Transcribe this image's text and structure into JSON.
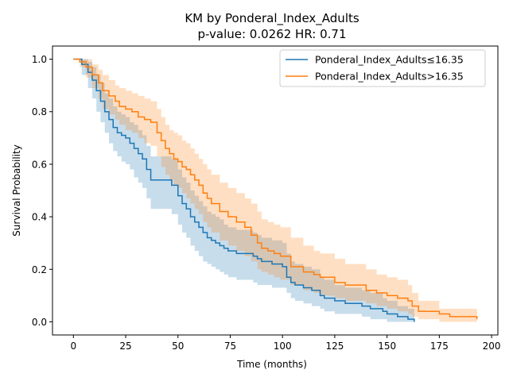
{
  "chart_data": {
    "type": "line",
    "title": "KM by Ponderal_Index_Adults",
    "subtitle": "p-value: 0.0262  HR: 0.71",
    "xlabel": "Time (months)",
    "ylabel": "Survival Probability",
    "xlim": [
      -10,
      203
    ],
    "ylim": [
      -0.05,
      1.05
    ],
    "xticks": [
      0,
      25,
      50,
      75,
      100,
      125,
      150,
      175,
      200
    ],
    "yticks": [
      0.0,
      0.2,
      0.4,
      0.6,
      0.8,
      1.0
    ],
    "xtick_labels": [
      "0",
      "25",
      "50",
      "75",
      "100",
      "125",
      "150",
      "175",
      "200"
    ],
    "ytick_labels": [
      "0.0",
      "0.2",
      "0.4",
      "0.6",
      "0.8",
      "1.0"
    ],
    "grid": false,
    "legend_position": "top-right",
    "step": true,
    "series": [
      {
        "name": "Ponderal_Index_Adults≤16.35",
        "color": "#1f77b4",
        "band_color": "#1f77b4",
        "x": [
          0,
          4,
          7,
          9,
          11,
          13,
          15,
          17,
          19,
          21,
          23,
          25,
          27,
          29,
          31,
          33,
          35,
          37,
          47,
          50,
          52,
          54,
          56,
          58,
          60,
          62,
          64,
          66,
          68,
          70,
          72,
          74,
          76,
          78,
          86,
          88,
          90,
          95,
          100,
          102,
          104,
          106,
          110,
          114,
          118,
          120,
          125,
          130,
          135,
          138,
          142,
          148,
          150,
          155,
          160,
          163
        ],
        "y": [
          1.0,
          0.98,
          0.95,
          0.92,
          0.88,
          0.84,
          0.8,
          0.77,
          0.74,
          0.72,
          0.71,
          0.7,
          0.68,
          0.66,
          0.64,
          0.62,
          0.58,
          0.54,
          0.52,
          0.48,
          0.45,
          0.43,
          0.4,
          0.38,
          0.36,
          0.34,
          0.32,
          0.31,
          0.3,
          0.29,
          0.28,
          0.27,
          0.27,
          0.26,
          0.25,
          0.24,
          0.23,
          0.22,
          0.21,
          0.17,
          0.15,
          0.14,
          0.13,
          0.12,
          0.1,
          0.09,
          0.08,
          0.07,
          0.07,
          0.06,
          0.05,
          0.04,
          0.03,
          0.02,
          0.01,
          0.0
        ],
        "ci_lower": [
          1.0,
          0.94,
          0.89,
          0.85,
          0.8,
          0.76,
          0.72,
          0.68,
          0.65,
          0.63,
          0.61,
          0.6,
          0.58,
          0.55,
          0.53,
          0.51,
          0.47,
          0.43,
          0.41,
          0.37,
          0.34,
          0.32,
          0.29,
          0.27,
          0.25,
          0.23,
          0.22,
          0.21,
          0.2,
          0.19,
          0.18,
          0.17,
          0.17,
          0.16,
          0.15,
          0.14,
          0.14,
          0.13,
          0.13,
          0.11,
          0.09,
          0.08,
          0.07,
          0.06,
          0.05,
          0.04,
          0.03,
          0.03,
          0.03,
          0.02,
          0.01,
          0.01,
          0.0,
          0.0,
          0.0,
          0.0
        ],
        "ci_upper": [
          1.0,
          1.0,
          0.99,
          0.97,
          0.94,
          0.91,
          0.87,
          0.85,
          0.82,
          0.8,
          0.79,
          0.78,
          0.76,
          0.75,
          0.73,
          0.71,
          0.67,
          0.63,
          0.62,
          0.58,
          0.55,
          0.53,
          0.5,
          0.48,
          0.46,
          0.44,
          0.42,
          0.41,
          0.4,
          0.39,
          0.37,
          0.36,
          0.36,
          0.35,
          0.34,
          0.33,
          0.32,
          0.31,
          0.3,
          0.26,
          0.23,
          0.22,
          0.21,
          0.2,
          0.17,
          0.16,
          0.14,
          0.13,
          0.13,
          0.12,
          0.11,
          0.09,
          0.08,
          0.06,
          0.05,
          0.04
        ]
      },
      {
        "name": "Ponderal_Index_Adults>16.35",
        "color": "#ff7f0e",
        "band_color": "#ff7f0e",
        "x": [
          0,
          3,
          6,
          9,
          12,
          14,
          17,
          20,
          22,
          25,
          28,
          31,
          34,
          37,
          40,
          42,
          44,
          46,
          48,
          50,
          52,
          54,
          56,
          58,
          60,
          62,
          64,
          66,
          70,
          74,
          78,
          82,
          85,
          88,
          90,
          93,
          96,
          99,
          104,
          110,
          115,
          118,
          125,
          130,
          140,
          145,
          150,
          155,
          160,
          162,
          165,
          175,
          180,
          193
        ],
        "y": [
          1.0,
          0.99,
          0.97,
          0.94,
          0.91,
          0.88,
          0.86,
          0.84,
          0.82,
          0.81,
          0.8,
          0.78,
          0.77,
          0.76,
          0.72,
          0.69,
          0.66,
          0.64,
          0.62,
          0.61,
          0.59,
          0.58,
          0.56,
          0.54,
          0.52,
          0.49,
          0.47,
          0.45,
          0.42,
          0.4,
          0.38,
          0.36,
          0.33,
          0.3,
          0.28,
          0.27,
          0.26,
          0.25,
          0.21,
          0.19,
          0.18,
          0.17,
          0.15,
          0.14,
          0.12,
          0.11,
          0.1,
          0.09,
          0.08,
          0.06,
          0.04,
          0.03,
          0.02,
          0.01
        ],
        "ci_lower": [
          1.0,
          0.97,
          0.93,
          0.89,
          0.85,
          0.81,
          0.79,
          0.77,
          0.75,
          0.73,
          0.72,
          0.7,
          0.68,
          0.67,
          0.63,
          0.59,
          0.56,
          0.54,
          0.52,
          0.51,
          0.49,
          0.47,
          0.45,
          0.43,
          0.41,
          0.38,
          0.36,
          0.34,
          0.31,
          0.29,
          0.27,
          0.25,
          0.23,
          0.2,
          0.19,
          0.18,
          0.17,
          0.16,
          0.14,
          0.12,
          0.11,
          0.1,
          0.09,
          0.08,
          0.07,
          0.06,
          0.05,
          0.04,
          0.03,
          0.02,
          0.01,
          0.0,
          0.0,
          0.0
        ],
        "ci_upper": [
          1.0,
          1.0,
          1.0,
          0.98,
          0.96,
          0.94,
          0.92,
          0.9,
          0.89,
          0.88,
          0.87,
          0.86,
          0.85,
          0.84,
          0.81,
          0.78,
          0.75,
          0.73,
          0.72,
          0.71,
          0.69,
          0.68,
          0.66,
          0.64,
          0.62,
          0.6,
          0.58,
          0.56,
          0.53,
          0.51,
          0.49,
          0.47,
          0.45,
          0.42,
          0.39,
          0.38,
          0.37,
          0.36,
          0.32,
          0.29,
          0.27,
          0.26,
          0.24,
          0.22,
          0.2,
          0.18,
          0.17,
          0.16,
          0.14,
          0.11,
          0.08,
          0.05,
          0.05,
          0.05
        ]
      }
    ]
  }
}
